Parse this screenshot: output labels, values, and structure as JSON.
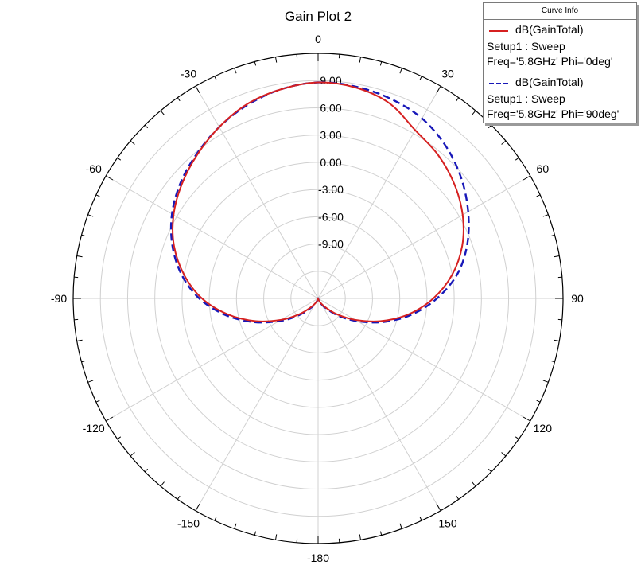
{
  "chart_data": {
    "type": "polar-line",
    "title": "Gain Plot 2",
    "angle_unit": "deg",
    "angle_ticks": [
      0,
      30,
      60,
      90,
      120,
      150,
      -180,
      -150,
      -120,
      -90,
      -60,
      -30
    ],
    "angle_tick_labels": [
      "0",
      "30",
      "60",
      "90",
      "120",
      "150",
      "-180",
      "-150",
      "-120",
      "-90",
      "-60",
      "-30"
    ],
    "radial_range": [
      -15,
      12
    ],
    "radial_ticks": [
      -12,
      -9,
      -6,
      -3,
      0,
      3,
      6,
      9,
      12
    ],
    "radial_tick_labels": [
      "-9.00",
      "-6.00",
      "-3.00",
      "0.00",
      "3.00",
      "6.00",
      "9.00"
    ],
    "radial_labeled_values": [
      -9,
      -6,
      -3,
      0,
      3,
      6,
      9
    ],
    "grid": true,
    "legend_position": "top-right",
    "legend_title": "Curve Info",
    "series": [
      {
        "name": "dB(GainTotal)",
        "setup": "Setup1 : Sweep",
        "freq": "Freq='5.8GHz' Phi='0deg'",
        "color": "#d62020",
        "line_style": "solid",
        "theta": [
          0,
          10,
          20,
          30,
          40,
          50,
          60,
          70,
          80,
          90,
          100,
          110,
          120,
          130,
          140,
          150,
          160,
          170,
          180,
          -170,
          -160,
          -150,
          -140,
          -130,
          -120,
          -110,
          -100,
          -90,
          -80,
          -70,
          -60,
          -50,
          -40,
          -30,
          -20,
          -10
        ],
        "gain_db": [
          8.8,
          8.6,
          7.9,
          6.4,
          5.6,
          4.6,
          3.4,
          1.9,
          0.0,
          -2.3,
          -4.9,
          -7.7,
          -10.3,
          -12.3,
          -13.7,
          -14.4,
          -14.8,
          -15.0,
          -15.0,
          -15.0,
          -14.8,
          -14.4,
          -13.7,
          -12.3,
          -10.3,
          -7.7,
          -4.9,
          -2.2,
          0.0,
          1.9,
          3.4,
          4.6,
          5.7,
          6.8,
          7.8,
          8.4
        ]
      },
      {
        "name": "dB(GainTotal)",
        "setup": "Setup1 : Sweep",
        "freq": "Freq='5.8GHz' Phi='90deg'",
        "color": "#1818b8",
        "line_style": "dashed",
        "theta": [
          0,
          10,
          20,
          30,
          40,
          50,
          60,
          70,
          80,
          90,
          100,
          110,
          120,
          130,
          140,
          150,
          160,
          170,
          180,
          -170,
          -160,
          -150,
          -140,
          -130,
          -120,
          -110,
          -100,
          -90,
          -80,
          -70,
          -60,
          -50,
          -40,
          -30,
          -20,
          -10
        ],
        "gain_db": [
          8.8,
          8.7,
          8.4,
          7.9,
          6.9,
          5.6,
          4.1,
          2.5,
          0.6,
          -1.9,
          -4.6,
          -7.4,
          -10.0,
          -12.0,
          -13.5,
          -14.3,
          -14.8,
          -15.0,
          -15.0,
          -15.0,
          -14.8,
          -14.3,
          -13.5,
          -12.0,
          -10.0,
          -7.4,
          -4.6,
          -1.9,
          0.3,
          2.1,
          3.6,
          4.8,
          5.8,
          6.8,
          7.7,
          8.4
        ]
      }
    ]
  }
}
